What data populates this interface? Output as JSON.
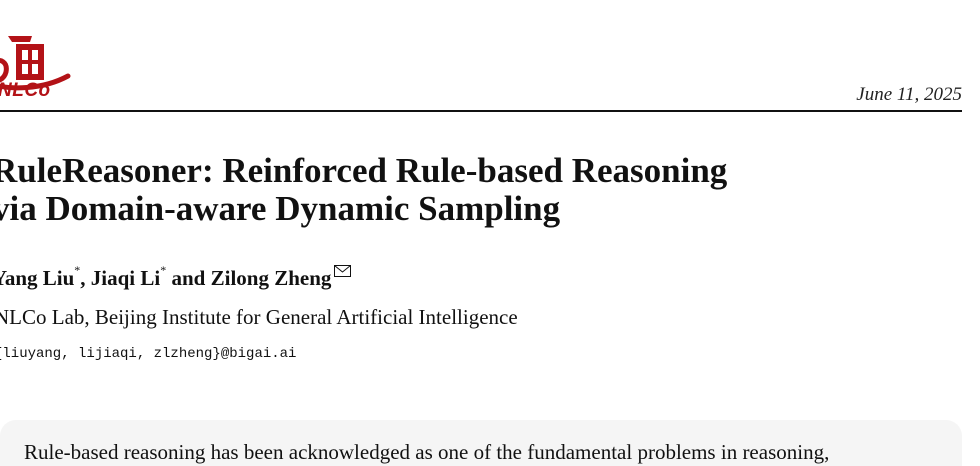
{
  "header": {
    "logo_label": "NLCo",
    "date": "June 11, 2025"
  },
  "paper": {
    "title_line1": "RuleReasoner: Reinforced Rule-based Reasoning",
    "title_line2": "via Domain-aware Dynamic Sampling",
    "authors": [
      {
        "name": "Yang Liu",
        "mark": "*"
      },
      {
        "name": "Jiaqi Li",
        "mark": "*"
      },
      {
        "name": "Zilong Zheng",
        "mark": ""
      }
    ],
    "author_separator_1": ", ",
    "author_separator_2": " and ",
    "affiliation": "NLCo Lab, Beijing Institute for General Artificial Intelligence",
    "email": "{liuyang, lijiaqi, zlzheng}@bigai.ai"
  },
  "abstract": {
    "first_line": "Rule-based reasoning has been acknowledged as one of the fundamental problems in reasoning,"
  },
  "colors": {
    "logo_red": "#b31217",
    "abstract_bg": "#f5f5f5"
  }
}
